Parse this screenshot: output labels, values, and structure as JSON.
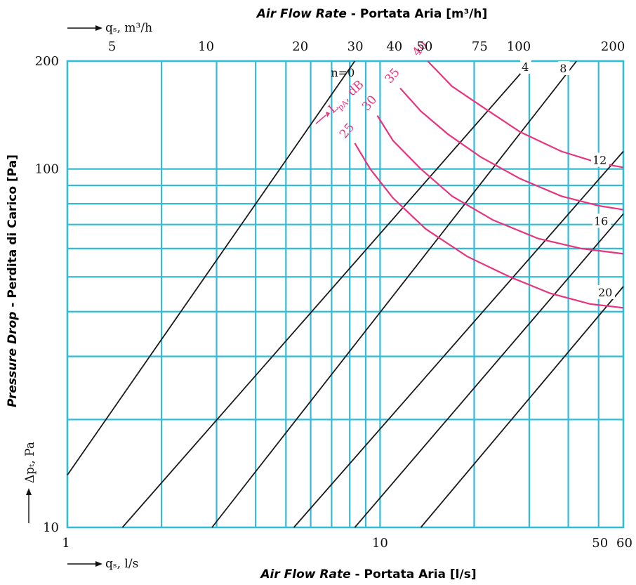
{
  "chart_data": {
    "type": "line",
    "title_top": {
      "italic": "Air Flow Rate",
      "rest": " - Portata Aria [m³/h]"
    },
    "title_bottom": {
      "italic": "Air Flow Rate",
      "rest": " - Portata Aria [l/s]"
    },
    "ylabel": {
      "italic": "Pressure Drop",
      "rest": " - Perdita di Carico [Pa]"
    },
    "top_axis_label": "qₛ, m³/h",
    "bottom_axis_label": "qₛ, l/s",
    "y_axis_label": "Δpₜ, Pa",
    "x_scale": "log",
    "y_scale": "log",
    "xlim": [
      1,
      60
    ],
    "ylim": [
      10,
      200
    ],
    "grid": true,
    "x_ticks_bottom": [
      {
        "value": 1,
        "label": "1"
      },
      {
        "value": 10,
        "label": "10"
      },
      {
        "value": 50,
        "label": "50"
      },
      {
        "value": 60,
        "label": "60"
      }
    ],
    "x_ticks_top": [
      {
        "value": 5,
        "label": "5"
      },
      {
        "value": 10,
        "label": "10"
      },
      {
        "value": 20,
        "label": "20"
      },
      {
        "value": 30,
        "label": "30"
      },
      {
        "value": 40,
        "label": "40"
      },
      {
        "value": 50,
        "label": "50"
      },
      {
        "value": 75,
        "label": "75"
      },
      {
        "value": 100,
        "label": "100"
      },
      {
        "value": 200,
        "label": "200"
      }
    ],
    "y_ticks": [
      {
        "value": 10,
        "label": "10"
      },
      {
        "value": 100,
        "label": "100"
      },
      {
        "value": 200,
        "label": "200"
      }
    ],
    "x_grid_values": [
      2,
      3,
      4,
      5,
      6,
      7,
      8,
      9,
      10,
      20,
      30,
      40,
      50
    ],
    "y_grid_values": [
      20,
      30,
      40,
      50,
      60,
      70,
      80,
      90,
      100
    ],
    "series": [
      {
        "name": "n=0",
        "kind": "pressure",
        "points": [
          [
            1,
            14.0
          ],
          [
            8.3,
            200
          ]
        ]
      },
      {
        "name": "4",
        "kind": "pressure",
        "points": [
          [
            1.5,
            10
          ],
          [
            30.5,
            200
          ]
        ]
      },
      {
        "name": "8",
        "kind": "pressure",
        "points": [
          [
            2.9,
            10
          ],
          [
            42.5,
            200
          ]
        ]
      },
      {
        "name": "12",
        "kind": "pressure",
        "points": [
          [
            5.3,
            10
          ],
          [
            60,
            112
          ]
        ]
      },
      {
        "name": "16",
        "kind": "pressure",
        "points": [
          [
            8.3,
            10
          ],
          [
            60,
            75
          ]
        ]
      },
      {
        "name": "20",
        "kind": "pressure",
        "points": [
          [
            13.5,
            10
          ],
          [
            60,
            47
          ]
        ]
      },
      {
        "name": "25",
        "kind": "noise",
        "points": [
          [
            8.3,
            118
          ],
          [
            9.3,
            100
          ],
          [
            11,
            83
          ],
          [
            14,
            68
          ],
          [
            19,
            57
          ],
          [
            26,
            50
          ],
          [
            35,
            45
          ],
          [
            47,
            42
          ],
          [
            60,
            41
          ]
        ]
      },
      {
        "name": "30",
        "kind": "noise",
        "points": [
          [
            9.8,
            141
          ],
          [
            11,
            120
          ],
          [
            13.5,
            100
          ],
          [
            17,
            84
          ],
          [
            23,
            72
          ],
          [
            32,
            64
          ],
          [
            44,
            60
          ],
          [
            60,
            58
          ]
        ]
      },
      {
        "name": "35",
        "kind": "noise",
        "points": [
          [
            11.6,
            168
          ],
          [
            13.5,
            145
          ],
          [
            16.5,
            125
          ],
          [
            21,
            108
          ],
          [
            28,
            94
          ],
          [
            38,
            84
          ],
          [
            50,
            79
          ],
          [
            60,
            77
          ]
        ]
      },
      {
        "name": "40",
        "kind": "noise",
        "points": [
          [
            14.2,
            200
          ],
          [
            17,
            170
          ],
          [
            21.5,
            148
          ],
          [
            28,
            127
          ],
          [
            38,
            112
          ],
          [
            50,
            104
          ],
          [
            60,
            101
          ]
        ]
      }
    ],
    "pressure_curve_labels": [
      "n=0",
      "4",
      "8",
      "12",
      "16",
      "20"
    ],
    "noise_curve_labels": [
      "25",
      "30",
      "35",
      "40"
    ],
    "noise_axis_label": "L",
    "noise_axis_subscript": "pA",
    "noise_axis_unit": ", dB"
  }
}
